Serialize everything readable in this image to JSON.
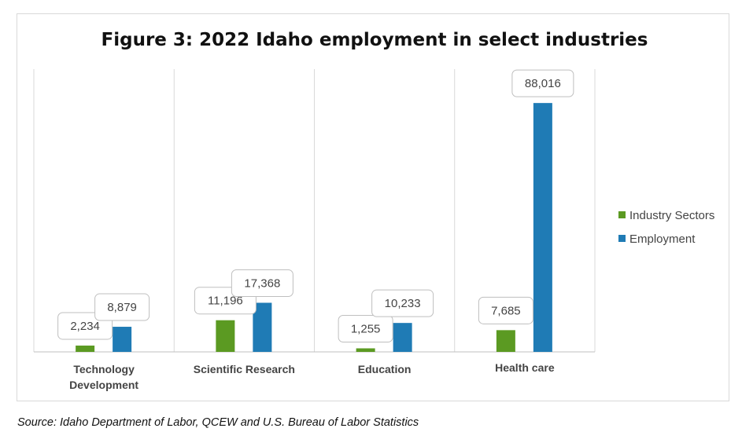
{
  "chart_data": {
    "type": "bar",
    "title": "Figure 3: 2022 Idaho employment in select industries",
    "categories": [
      [
        "Technology",
        "Development"
      ],
      [
        "Scientific Research"
      ],
      [
        "Education"
      ],
      [
        "Health care"
      ]
    ],
    "series": [
      {
        "name": "Industry Sectors",
        "color": "#5b9a22",
        "values": [
          2234,
          11196,
          1255,
          7685
        ],
        "labels": [
          "2,234",
          "11,196",
          "1,255",
          "7,685"
        ]
      },
      {
        "name": "Employment",
        "color": "#1f7bb5",
        "values": [
          8879,
          17368,
          10233,
          88016
        ],
        "labels": [
          "8,879",
          "17,368",
          "10,233",
          "88,016"
        ]
      }
    ],
    "ylim": [
      0,
      100000
    ],
    "grid": "vertical category separators",
    "legend": "right"
  },
  "source": "Source: Idaho Department of Labor, QCEW and U.S. Bureau of Labor Statistics"
}
